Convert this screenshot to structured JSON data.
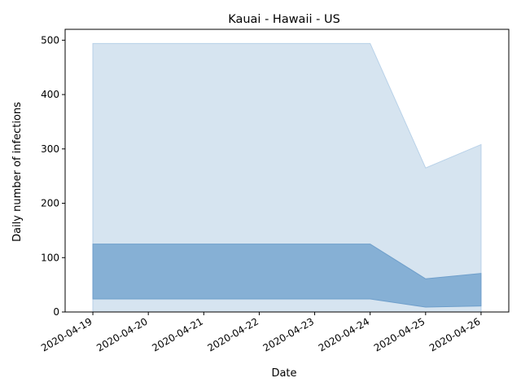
{
  "chart_data": {
    "type": "area",
    "title": "Kauai - Hawaii - US",
    "xlabel": "Date",
    "ylabel": "Daily number of infections",
    "x": [
      "2020-04-19",
      "2020-04-20",
      "2020-04-21",
      "2020-04-22",
      "2020-04-23",
      "2020-04-24",
      "2020-04-25",
      "2020-04-26"
    ],
    "ylim": [
      0,
      520
    ],
    "yticks": [
      0,
      100,
      200,
      300,
      400,
      500
    ],
    "grid": false,
    "bands": [
      {
        "lower": [
          0,
          0,
          0,
          0,
          0,
          0,
          0,
          0
        ],
        "upper": [
          494,
          494,
          494,
          494,
          494,
          494,
          265,
          308
        ],
        "color": "#d6e4f0",
        "edge": "#b8d1e8"
      },
      {
        "lower": [
          24,
          24,
          24,
          24,
          24,
          24,
          9,
          11
        ],
        "upper": [
          125,
          125,
          125,
          125,
          125,
          125,
          61,
          71
        ],
        "color": "#86b0d5",
        "edge": "#6f9fcb"
      }
    ]
  }
}
